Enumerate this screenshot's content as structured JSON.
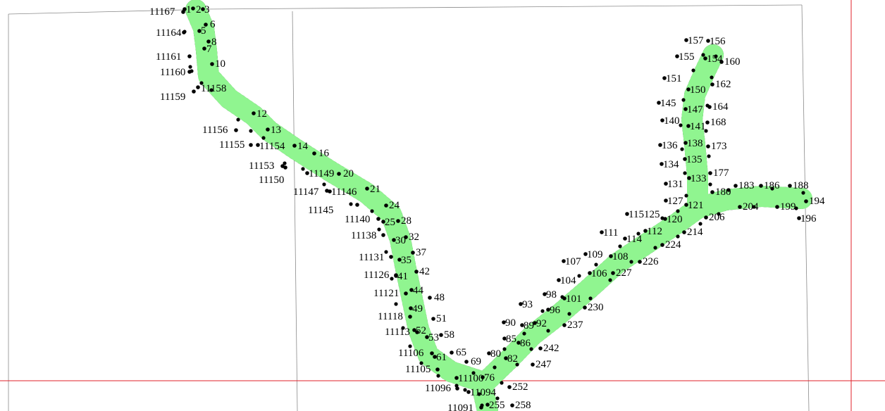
{
  "colors": {
    "buffer": "#90f590",
    "grid": "#8a8a8a",
    "reference_line": "#e0202a",
    "vertex": "#000000"
  },
  "labels": [
    "11167",
    "1",
    "2",
    "3",
    "6",
    "11164",
    "5",
    "8",
    "7",
    "11161",
    "10",
    "11160",
    "11158",
    "11159",
    "12",
    "11156",
    "13",
    "11155",
    "11154",
    "14",
    "16",
    "11153",
    "11150",
    "11149",
    "20",
    "11147",
    "11146",
    "21",
    "11145",
    "24",
    "11140",
    "25",
    "28",
    "11138",
    "30",
    "32",
    "11131",
    "35",
    "37",
    "11126",
    "41",
    "42",
    "11121",
    "44",
    "48",
    "11118",
    "49",
    "51",
    "11113",
    "52",
    "53",
    "58",
    "11106",
    "61",
    "65",
    "11105",
    "69",
    "11100",
    "76",
    "11096",
    "11094",
    "80",
    "82",
    "85",
    "86",
    "90",
    "89",
    "92",
    "93",
    "98",
    "96",
    "101",
    "104",
    "106",
    "107",
    "109",
    "108",
    "111",
    "114",
    "112",
    "115125",
    "120",
    "127",
    "121",
    "131",
    "133",
    "134",
    "135",
    "136",
    "138",
    "140",
    "141",
    "145",
    "147",
    "151",
    "150",
    "155",
    "154",
    "157",
    "156",
    "160",
    "162",
    "164",
    "168",
    "173",
    "177",
    "180",
    "183",
    "186",
    "188",
    "194",
    "196",
    "199",
    "204",
    "206",
    "214",
    "224",
    "226",
    "227",
    "230",
    "237",
    "242",
    "247",
    "252",
    "255",
    "258",
    "11091"
  ]
}
